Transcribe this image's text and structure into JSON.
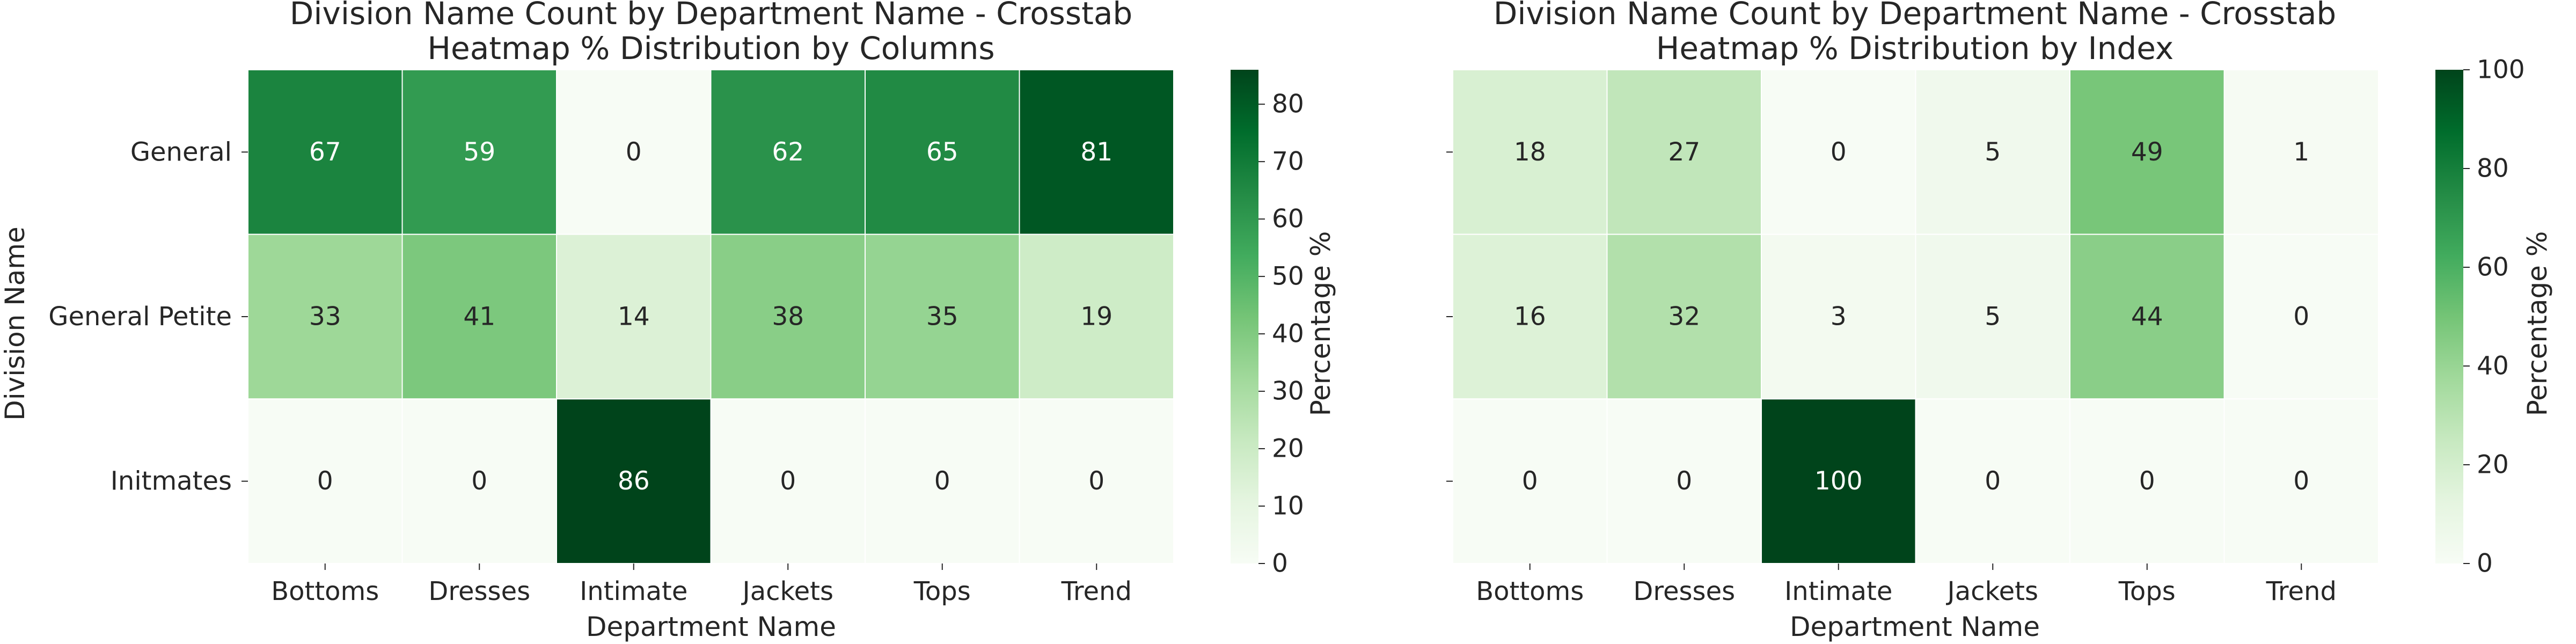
{
  "chart_data": [
    {
      "type": "heatmap",
      "title": [
        "Division Name Count by Department Name - Crosstab",
        "Heatmap % Distribution by Columns"
      ],
      "xlabel": "Department Name",
      "ylabel": "Division Name",
      "x_categories": [
        "Bottoms",
        "Dresses",
        "Intimate",
        "Jackets",
        "Tops",
        "Trend"
      ],
      "y_categories": [
        "General",
        "General Petite",
        "Initmates"
      ],
      "show_y_tick_labels": true,
      "values": [
        [
          67,
          59,
          0,
          62,
          65,
          81
        ],
        [
          33,
          41,
          14,
          38,
          35,
          19
        ],
        [
          0,
          0,
          86,
          0,
          0,
          0
        ]
      ],
      "colorbar": {
        "label": "Percentage %",
        "range": [
          0,
          86
        ],
        "ticks": [
          "0",
          "10",
          "20",
          "30",
          "40",
          "50",
          "60",
          "70",
          "80"
        ]
      },
      "colormap": [
        "#f7fcf5",
        "#e5f5e0",
        "#c7e9c0",
        "#a1d99b",
        "#74c476",
        "#41ab5d",
        "#238b45",
        "#006d2c",
        "#00441b"
      ]
    },
    {
      "type": "heatmap",
      "title": [
        "Division Name Count by Department Name - Crosstab",
        "Heatmap % Distribution by Index"
      ],
      "xlabel": "Department Name",
      "ylabel": "",
      "x_categories": [
        "Bottoms",
        "Dresses",
        "Intimate",
        "Jackets",
        "Tops",
        "Trend"
      ],
      "y_categories": [
        "General",
        "General Petite",
        "Initmates"
      ],
      "show_y_tick_labels": false,
      "values": [
        [
          18,
          27,
          0,
          5,
          49,
          1
        ],
        [
          16,
          32,
          3,
          5,
          44,
          0
        ],
        [
          0,
          0,
          100,
          0,
          0,
          0
        ]
      ],
      "colorbar": {
        "label": "Percentage %",
        "range": [
          0,
          100
        ],
        "ticks": [
          "0",
          "20",
          "40",
          "60",
          "80",
          "100"
        ]
      },
      "colormap": [
        "#f7fcf5",
        "#e5f5e0",
        "#c7e9c0",
        "#a1d99b",
        "#74c476",
        "#41ab5d",
        "#238b45",
        "#006d2c",
        "#00441b"
      ]
    }
  ]
}
